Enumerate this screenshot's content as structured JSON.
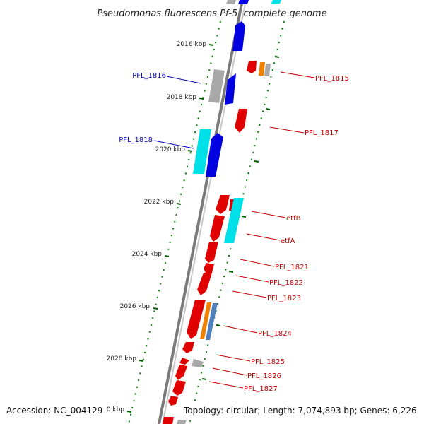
{
  "title": "Pseudomonas fluorescens Pf-5, complete genome",
  "footer": {
    "accession": "Accession: NC_004129",
    "topology": "Topology: circular; Length: 7,074,893 bp; Genes: 6,226"
  },
  "kbp_ticks": [
    "2016 kbp",
    "2018 kbp",
    "2020 kbp",
    "2022 kbp",
    "2024 kbp",
    "2026 kbp",
    "2028 kbp",
    "0 kbp"
  ],
  "gene_labels": {
    "left": [
      "PFL_1816",
      "PFL_1818"
    ],
    "right": [
      "PFL_1815",
      "PFL_1817",
      "etfB",
      "etfA",
      "PFL_1821",
      "PFL_1822",
      "PFL_1823",
      "PFL_1824",
      "PFL_1825",
      "PFL_1826",
      "PFL_1827"
    ]
  },
  "colors": {
    "forward_gene": "#e00000",
    "reverse_gene": "#0000e0",
    "cyan_gene": "#00e0e8",
    "gray_gene": "#a8a8a8",
    "orange_gene": "#f08000",
    "steel_gene": "#4f7fbf",
    "backbone": "#808080",
    "gc_dots": "#008000",
    "red_label": "#c00000",
    "blue_label": "#0000b0"
  }
}
